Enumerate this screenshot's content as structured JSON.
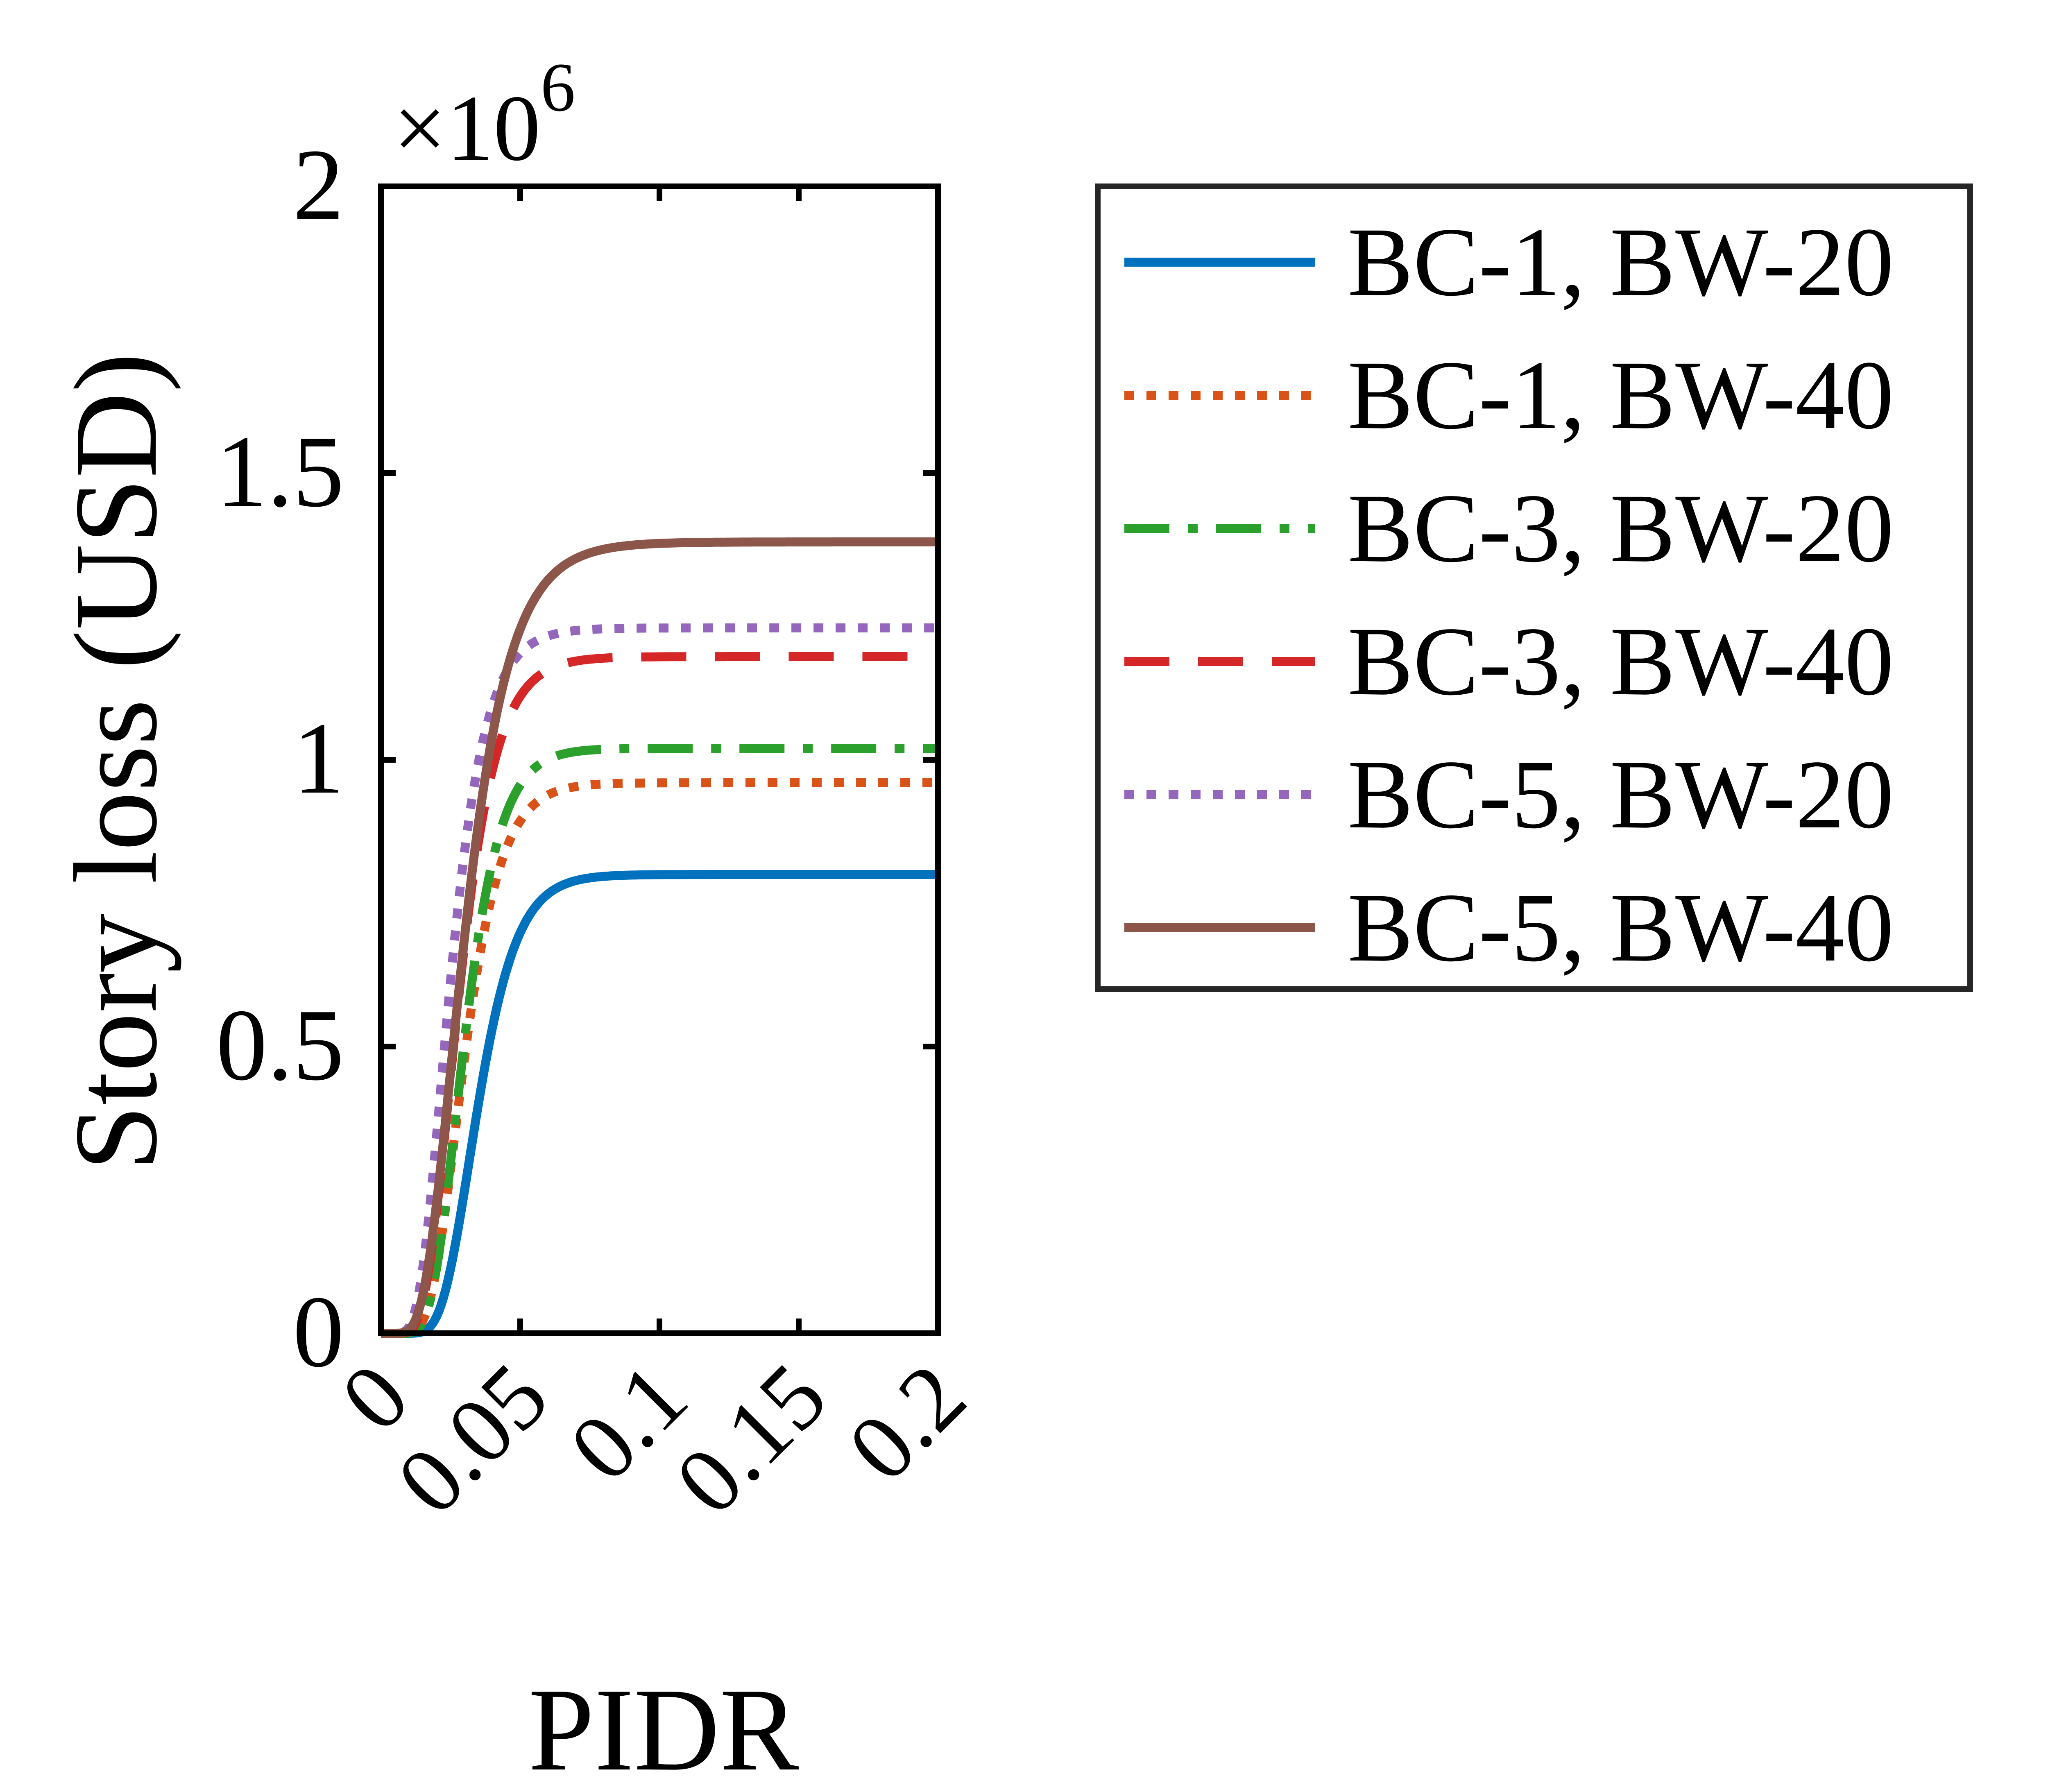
{
  "chart_data": {
    "type": "line",
    "xlabel": "PIDR",
    "ylabel": "Story loss (USD)",
    "y_exponent_label": "×10",
    "y_exponent_power": "6",
    "xlim": [
      0,
      0.2
    ],
    "ylim": [
      0,
      2
    ],
    "x_ticks": [
      0,
      0.05,
      0.1,
      0.15,
      0.2
    ],
    "x_tick_labels": [
      "0",
      "0.05",
      "0.1",
      "0.15",
      "0.2"
    ],
    "y_ticks": [
      0,
      0.5,
      1,
      1.5,
      2
    ],
    "y_tick_labels": [
      "0",
      "0.5",
      "1",
      "1.5",
      "2"
    ],
    "y_units_scale": 1000000,
    "grid": false,
    "legend_position": "outside-right",
    "series": [
      {
        "name": "BC-1, BW-20",
        "color": "#0072BD",
        "style": "solid",
        "max": 0.8,
        "median": 0.035,
        "k": 3.2
      },
      {
        "name": "BC-1, BW-40",
        "color": "#D95319",
        "style": "dotted",
        "max": 0.96,
        "median": 0.03,
        "k": 2.9
      },
      {
        "name": "BC-3, BW-20",
        "color": "#2CA02C",
        "style": "dashdot",
        "max": 1.02,
        "median": 0.03,
        "k": 3.0
      },
      {
        "name": "BC-3, BW-40",
        "color": "#D62728",
        "style": "dashed",
        "max": 1.18,
        "median": 0.028,
        "k": 2.7
      },
      {
        "name": "BC-5, BW-20",
        "color": "#9467BD",
        "style": "dotted",
        "max": 1.23,
        "median": 0.025,
        "k": 2.6
      },
      {
        "name": "BC-5, BW-40",
        "color": "#8C564B",
        "style": "solid",
        "max": 1.38,
        "median": 0.03,
        "k": 2.4
      }
    ]
  }
}
